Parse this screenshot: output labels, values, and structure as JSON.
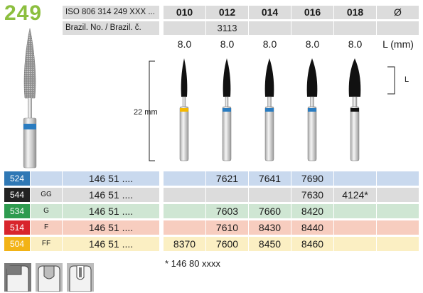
{
  "product_number": "249",
  "header": {
    "iso_label": "ISO 806 314 249 XXX ...",
    "brazil_label": "Brazil. No. / Brazil. č.",
    "sizes": [
      "010",
      "012",
      "014",
      "016",
      "018"
    ],
    "diameter_symbol": "Ø",
    "brazil_values": [
      "",
      "3113",
      "",
      "",
      ""
    ]
  },
  "lengths": {
    "values": [
      "8.0",
      "8.0",
      "8.0",
      "8.0",
      "8.0"
    ],
    "unit_label": "L (mm)"
  },
  "drawing": {
    "total_length_label": "22 mm",
    "l_label": "L"
  },
  "rows": [
    {
      "grade": "524",
      "sub": "",
      "number": "146 51 ....",
      "cells": [
        "",
        "7621",
        "7641",
        "7690",
        ""
      ]
    },
    {
      "grade": "544",
      "sub": "GG",
      "number": "146 51 ....",
      "cells": [
        "",
        "",
        "",
        "7630",
        "4124*"
      ]
    },
    {
      "grade": "534",
      "sub": "G",
      "number": "146 51 ....",
      "cells": [
        "",
        "7603",
        "7660",
        "8420",
        ""
      ]
    },
    {
      "grade": "514",
      "sub": "F",
      "number": "146 51 ....",
      "cells": [
        "",
        "7610",
        "8430",
        "8440",
        ""
      ]
    },
    {
      "grade": "504",
      "sub": "FF",
      "number": "146 51 ....",
      "cells": [
        "8370",
        "7600",
        "8450",
        "8460",
        ""
      ]
    }
  ],
  "footnote": "*  146 80 xxxx",
  "colors": {
    "product_green": "#8cbf3f",
    "grade_colors": [
      "#2f78b5",
      "#222222",
      "#2e9b4f",
      "#d8252c",
      "#f2b316"
    ],
    "row_bg": [
      "#c9d9ee",
      "#dcdcdc",
      "#cfe6d3",
      "#f7cdbf",
      "#fbefc3"
    ],
    "ring_colors": [
      "#f5b800",
      "#2a7cc0",
      "#2a7cc0",
      "#2a7cc0",
      "#111111"
    ]
  },
  "icons": [
    "tooth-cavity-icon",
    "tooth-cavity-icon",
    "tooth-cavity-icon"
  ]
}
